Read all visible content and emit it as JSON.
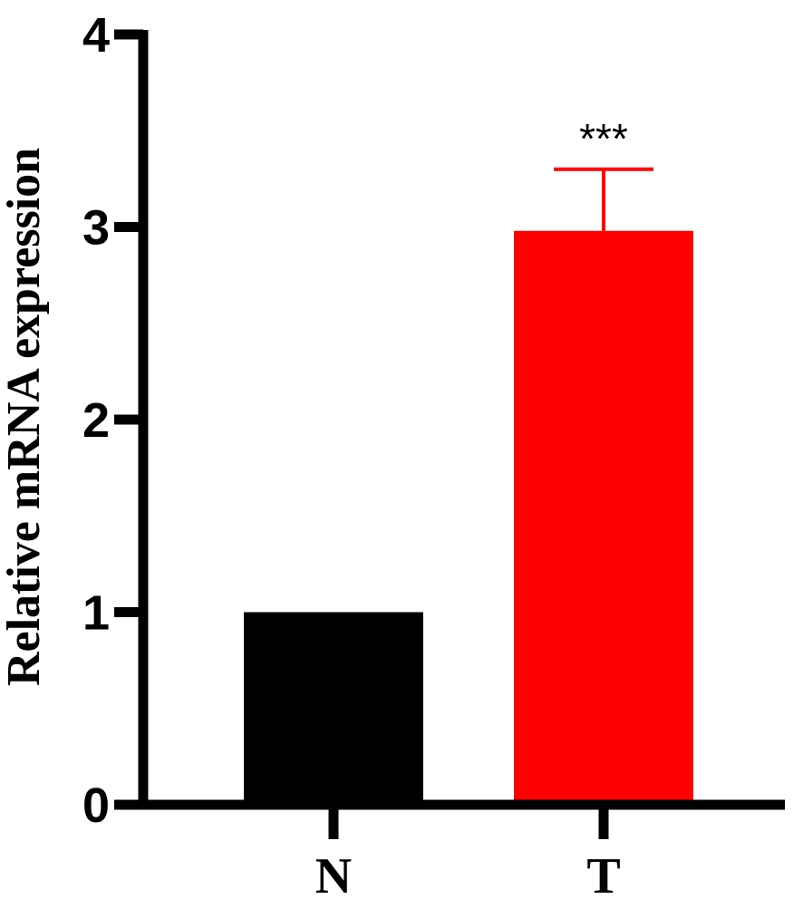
{
  "chart_data": {
    "type": "bar",
    "title": "",
    "xlabel": "",
    "ylabel": "Relative mRNA expression",
    "ylim": [
      0,
      4
    ],
    "yticks": [
      "0",
      "1",
      "2",
      "3",
      "4"
    ],
    "categories": [
      "N",
      "T"
    ],
    "values": [
      1.0,
      2.98
    ],
    "error_upper": [
      0,
      0.32
    ],
    "colors": [
      "#000000",
      "#ff0000"
    ],
    "annotations": [
      {
        "category": "T",
        "text": "***"
      }
    ],
    "grid": false,
    "legend": "none"
  }
}
